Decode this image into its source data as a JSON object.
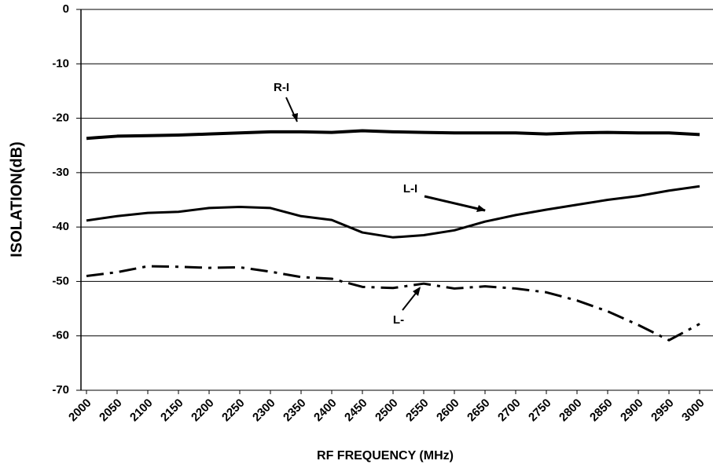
{
  "chart_data": {
    "type": "line",
    "x_label": "RF FREQUENCY (MHz)",
    "y_label": "ISOLATION(dB)",
    "x": [
      2000,
      2050,
      2100,
      2150,
      2200,
      2250,
      2300,
      2350,
      2400,
      2450,
      2500,
      2550,
      2600,
      2650,
      2700,
      2750,
      2800,
      2850,
      2900,
      2950,
      3000
    ],
    "series": [
      {
        "name": "R-I",
        "color": "#000000",
        "dash": "solid",
        "width": 4,
        "values": [
          -23.7,
          -23.3,
          -23.2,
          -23.1,
          -22.9,
          -22.7,
          -22.5,
          -22.5,
          -22.6,
          -22.3,
          -22.5,
          -22.6,
          -22.7,
          -22.7,
          -22.7,
          -22.9,
          -22.7,
          -22.6,
          -22.7,
          -22.7,
          -23.0
        ]
      },
      {
        "name": "L-I",
        "color": "#000000",
        "dash": "solid",
        "width": 3,
        "values": [
          -38.8,
          -38.0,
          -37.4,
          -37.2,
          -36.5,
          -36.3,
          -36.5,
          -38.0,
          -38.7,
          -41.0,
          -41.9,
          -41.5,
          -40.6,
          -39.0,
          -37.8,
          -36.8,
          -35.9,
          -35.0,
          -34.3,
          -33.3,
          -32.5
        ]
      },
      {
        "name": "L-",
        "color": "#000000",
        "dash": "dashdot",
        "width": 3,
        "values": [
          -49.0,
          -48.3,
          -47.2,
          -47.3,
          -47.5,
          -47.4,
          -48.2,
          -49.2,
          -49.5,
          -51.0,
          -51.2,
          -50.4,
          -51.3,
          -50.9,
          -51.3,
          -52.0,
          -53.5,
          -55.5,
          -58.0,
          -60.8,
          -57.8
        ]
      }
    ],
    "xlim": [
      2000,
      3000
    ],
    "xticks": [
      2000,
      2050,
      2100,
      2150,
      2200,
      2250,
      2300,
      2350,
      2400,
      2450,
      2500,
      2550,
      2600,
      2650,
      2700,
      2750,
      2800,
      2850,
      2900,
      2950,
      3000
    ],
    "ylim": [
      -70,
      0
    ],
    "yticks": [
      0,
      -10,
      -20,
      -30,
      -40,
      -50,
      -60,
      -70
    ],
    "grid": true
  }
}
